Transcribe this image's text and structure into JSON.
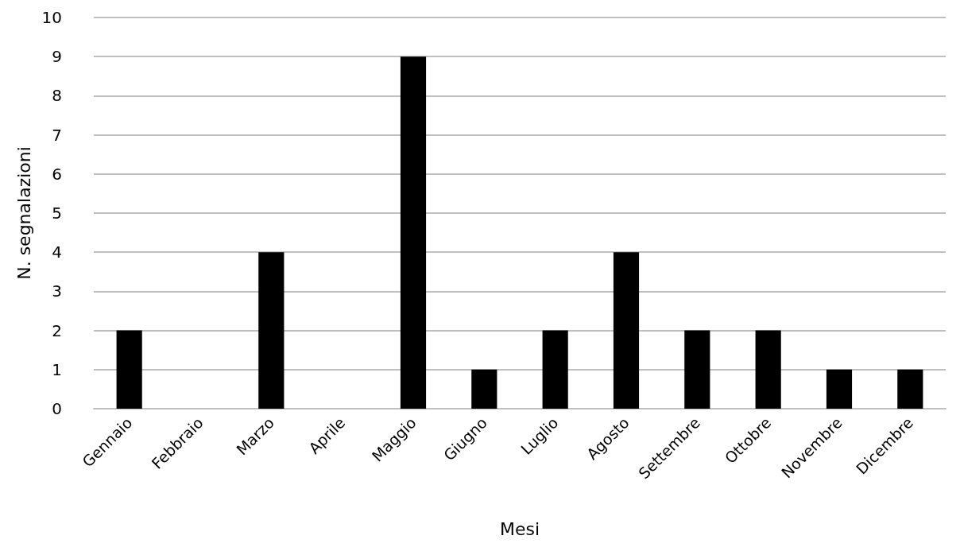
{
  "chart_data": {
    "type": "bar",
    "xlabel": "Mesi",
    "ylabel": "N. segnalazioni",
    "categories": [
      "Gennaio",
      "Febbraio",
      "Marzo",
      "Aprile",
      "Maggio",
      "Giugno",
      "Luglio",
      "Agosto",
      "Settembre",
      "Ottobre",
      "Novembre",
      "Dicembre"
    ],
    "values": [
      2,
      0,
      4,
      0,
      9,
      1,
      2,
      4,
      2,
      2,
      1,
      1
    ],
    "color": "#000000",
    "ylim": [
      0,
      10
    ],
    "yticks": [
      0,
      1,
      2,
      3,
      4,
      5,
      6,
      7,
      8,
      9,
      10
    ],
    "grid": "y"
  }
}
